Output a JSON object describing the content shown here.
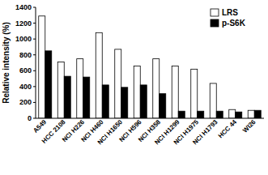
{
  "chart_data": {
    "type": "bar",
    "y_label": "Relative intensity (%)",
    "categories": [
      "A549",
      "HCC 2108",
      "NCI H226",
      "NCI H460",
      "NCI H1650",
      "NCI H596",
      "NCI H358",
      "NCI H1299",
      "NCI H1975",
      "NCI H1793",
      "HCC 44",
      "WI26"
    ],
    "series": [
      {
        "name": "LRS",
        "color": "#ffffff",
        "values": [
          1290,
          710,
          750,
          1080,
          870,
          660,
          750,
          660,
          620,
          440,
          110,
          100
        ]
      },
      {
        "name": "p-S6K",
        "color": "#000000",
        "values": [
          850,
          530,
          520,
          420,
          390,
          420,
          310,
          90,
          90,
          90,
          80,
          100
        ]
      }
    ],
    "ylim": [
      0,
      1400
    ],
    "yticks": [
      0,
      200,
      400,
      600,
      800,
      1000,
      1200,
      1400
    ],
    "grid": false,
    "legend": "top-right"
  }
}
